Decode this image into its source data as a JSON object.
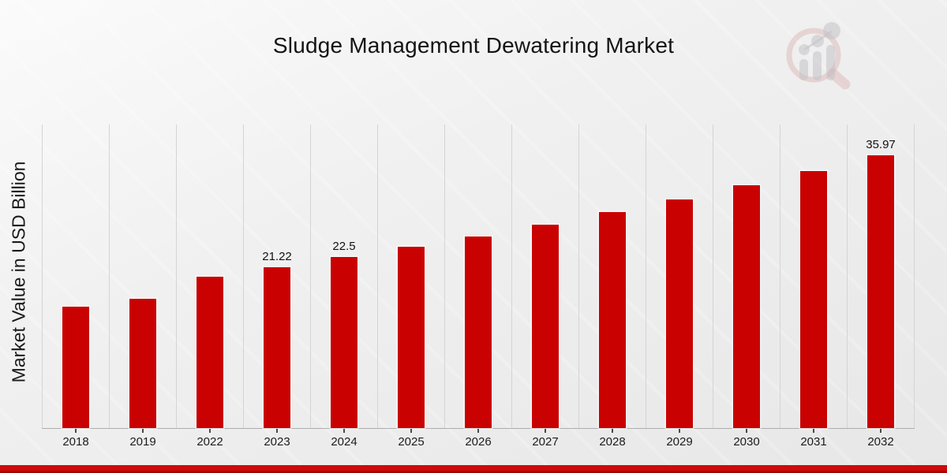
{
  "header": {
    "title": "Sludge Management Dewatering Market"
  },
  "logo": {
    "icon": "magnifier-bar-chart-logo-icon"
  },
  "chart_data": {
    "type": "bar",
    "title": "Sludge Management Dewatering Market",
    "xlabel": "",
    "ylabel": "Market Value in USD Billion",
    "categories": [
      "2018",
      "2019",
      "2022",
      "2023",
      "2024",
      "2025",
      "2026",
      "2027",
      "2028",
      "2029",
      "2030",
      "2031",
      "2032"
    ],
    "values": [
      16.0,
      17.0,
      20.0,
      21.22,
      22.5,
      23.86,
      25.3,
      26.83,
      28.45,
      30.17,
      31.99,
      33.92,
      35.97
    ],
    "data_labels": [
      "",
      "",
      "",
      "21.22",
      "22.5",
      "",
      "",
      "",
      "",
      "",
      "",
      "",
      "35.97"
    ],
    "ylim": [
      0,
      40
    ],
    "grid": "vertical-only",
    "legend": "none",
    "bar_color": "#c90101"
  },
  "colors": {
    "bar": "#c90101",
    "footer_band_top": "#cf0a0a",
    "footer_band_bottom": "#930000",
    "gridline": "#d4d4d4",
    "axis_line": "#adadad",
    "text": "#141414"
  }
}
